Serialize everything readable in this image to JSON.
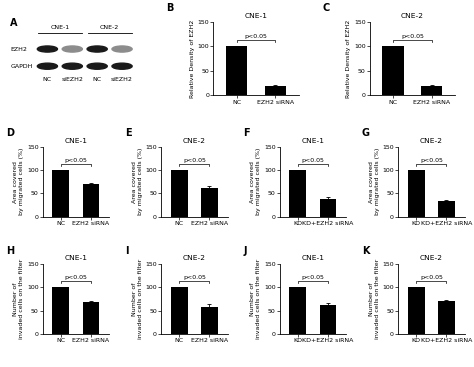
{
  "blot": {
    "panel": "A",
    "groups": [
      "CNE-1",
      "CNE-2"
    ],
    "rows": [
      "EZH2",
      "GAPDH"
    ],
    "lanes": [
      "NC",
      "siEZH2",
      "NC",
      "siEZH2"
    ]
  },
  "chart_data": [
    {
      "type": "bar",
      "panel": "B",
      "title": "CNE-1",
      "y_label": "Relative Density of EZH2",
      "categories": [
        "NC",
        "EZH2 siRNA"
      ],
      "values": [
        100,
        20
      ],
      "errors": [
        0,
        1.5
      ],
      "color": "#000000",
      "ylim": [
        0,
        150
      ],
      "yticks": [
        0,
        50,
        100,
        150
      ],
      "annotations": [
        "p<0.05"
      ]
    },
    {
      "type": "bar",
      "panel": "C",
      "title": "CNE-2",
      "y_label": "Relative Density of EZH2",
      "categories": [
        "NC",
        "EZH2 siRNA"
      ],
      "values": [
        100,
        20
      ],
      "errors": [
        0,
        1.5
      ],
      "color": "#000000",
      "ylim": [
        0,
        150
      ],
      "yticks": [
        0,
        50,
        100,
        150
      ],
      "annotations": [
        "p<0.05"
      ]
    },
    {
      "type": "bar",
      "panel": "D",
      "title": "CNE-1",
      "y_label": "Area covered\nby migrated cells (%)",
      "categories": [
        "NC",
        "EZH2 siRNA"
      ],
      "values": [
        100,
        70
      ],
      "errors": [
        0,
        2
      ],
      "color": "#000000",
      "ylim": [
        0,
        150
      ],
      "yticks": [
        0,
        50,
        100,
        150
      ],
      "annotations": [
        "p<0.05"
      ]
    },
    {
      "type": "bar",
      "panel": "E",
      "title": "CNE-2",
      "y_label": "Area covered\nby migrated cells (%)",
      "categories": [
        "NC",
        "EZH2 siRNA"
      ],
      "values": [
        100,
        62
      ],
      "errors": [
        0,
        4
      ],
      "color": "#000000",
      "ylim": [
        0,
        150
      ],
      "yticks": [
        0,
        50,
        100,
        150
      ],
      "annotations": [
        "p<0.05"
      ]
    },
    {
      "type": "bar",
      "panel": "F",
      "title": "CNE-1",
      "y_label": "Area covered\nby migrated cells (%)",
      "categories": [
        "KD",
        "KD+EZH2 siRNA"
      ],
      "values": [
        100,
        38
      ],
      "errors": [
        0,
        4
      ],
      "color": "#000000",
      "ylim": [
        0,
        150
      ],
      "yticks": [
        0,
        50,
        100,
        150
      ],
      "annotations": [
        "p<0.05"
      ]
    },
    {
      "type": "bar",
      "panel": "G",
      "title": "CNE-2",
      "y_label": "Area covered\nby migrated cells (%)",
      "categories": [
        "KD",
        "KD+EZH2 siRNA"
      ],
      "values": [
        100,
        33
      ],
      "errors": [
        0,
        3
      ],
      "color": "#000000",
      "ylim": [
        0,
        150
      ],
      "yticks": [
        0,
        50,
        100,
        150
      ],
      "annotations": [
        "p<0.05"
      ]
    },
    {
      "type": "bar",
      "panel": "H",
      "title": "CNE-1",
      "y_label": "Number of\ninvaded cells on the filter",
      "categories": [
        "NC",
        "EZH2 siRNA"
      ],
      "values": [
        100,
        68
      ],
      "errors": [
        0,
        3
      ],
      "color": "#000000",
      "ylim": [
        0,
        150
      ],
      "yticks": [
        0,
        50,
        100,
        150
      ],
      "annotations": [
        "p<0.05"
      ]
    },
    {
      "type": "bar",
      "panel": "I",
      "title": "CNE-2",
      "y_label": "Number of\ninvaded cells on the filter",
      "categories": [
        "NC",
        "EZH2 siRNA"
      ],
      "values": [
        100,
        58
      ],
      "errors": [
        0,
        6
      ],
      "color": "#000000",
      "ylim": [
        0,
        150
      ],
      "yticks": [
        0,
        50,
        100,
        150
      ],
      "annotations": [
        "p<0.05"
      ]
    },
    {
      "type": "bar",
      "panel": "J",
      "title": "CNE-1",
      "y_label": "Number of\ninvaded cells on the filter",
      "categories": [
        "KD",
        "KD+EZH2 siRNA"
      ],
      "values": [
        100,
        63
      ],
      "errors": [
        0,
        4
      ],
      "color": "#000000",
      "ylim": [
        0,
        150
      ],
      "yticks": [
        0,
        50,
        100,
        150
      ],
      "annotations": [
        "p<0.05"
      ]
    },
    {
      "type": "bar",
      "panel": "K",
      "title": "CNE-2",
      "y_label": "Number of\ninvaded cells on the filter",
      "categories": [
        "KD",
        "KD+EZH2 siRNA"
      ],
      "values": [
        100,
        70
      ],
      "errors": [
        0,
        2
      ],
      "color": "#000000",
      "ylim": [
        0,
        150
      ],
      "yticks": [
        0,
        50,
        100,
        150
      ],
      "annotations": [
        "p<0.05"
      ]
    }
  ]
}
